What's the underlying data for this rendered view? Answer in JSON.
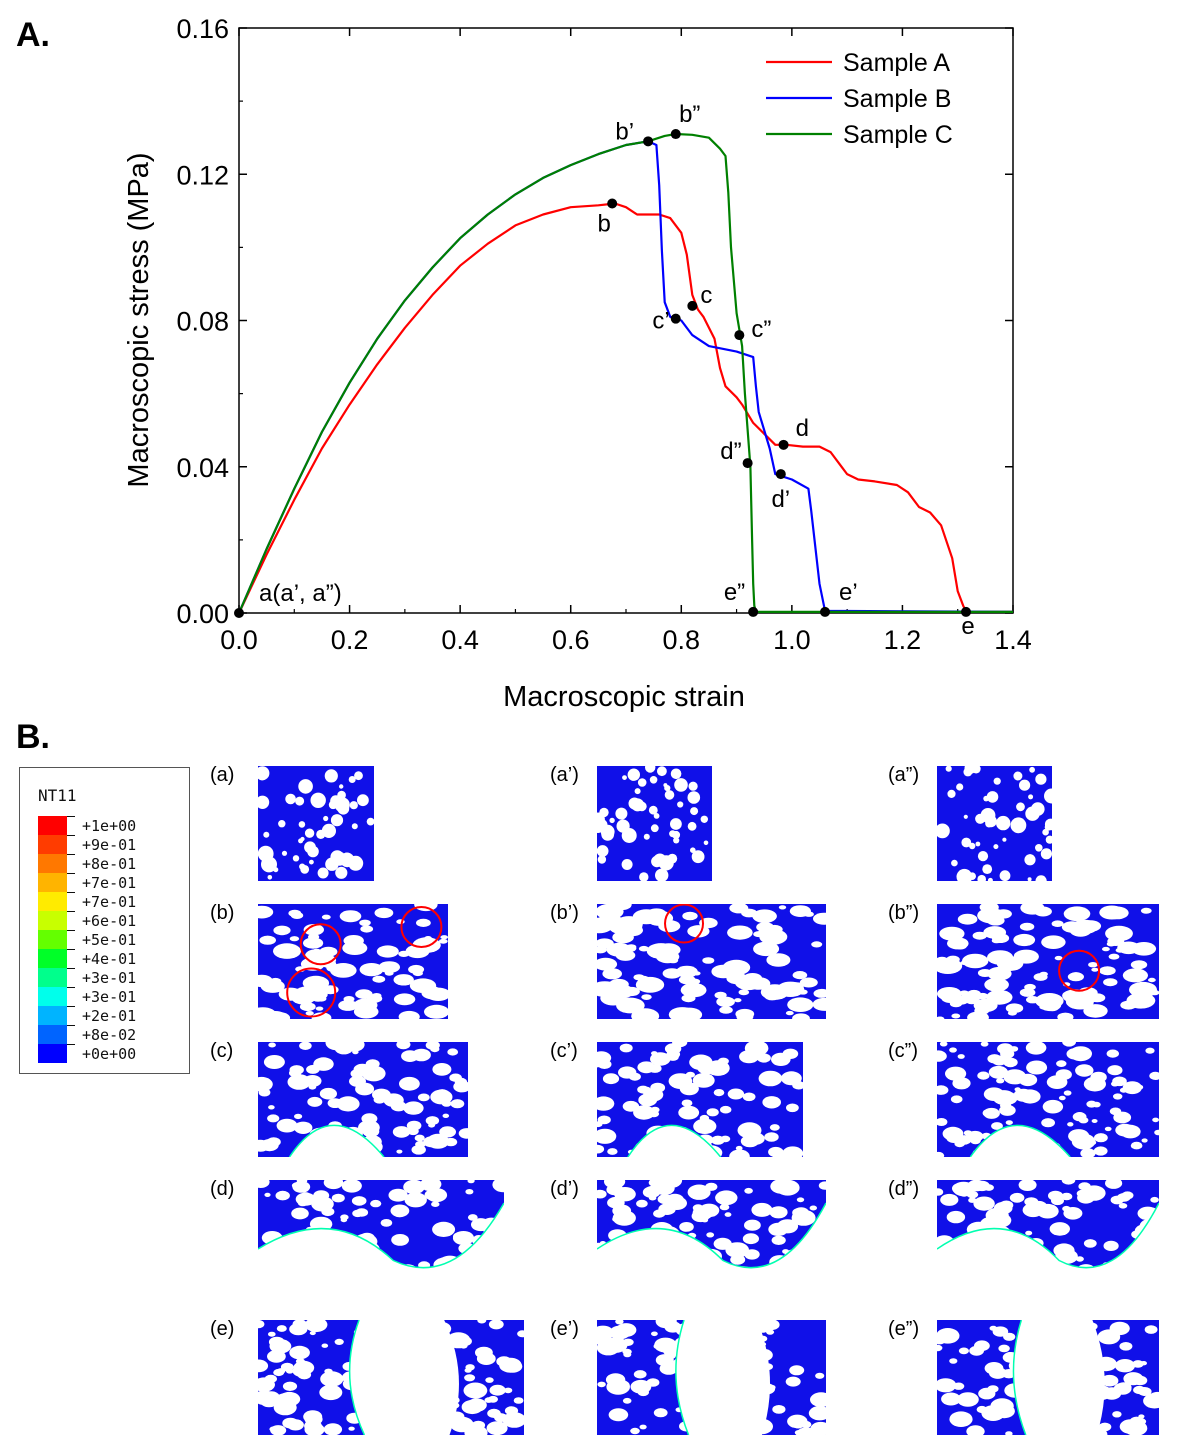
{
  "chart_data": {
    "type": "line",
    "panel_label": "A.",
    "xlabel": "Macroscopic strain",
    "ylabel": "Macroscopic stress (MPa)",
    "xlim": [
      0.0,
      1.4
    ],
    "ylim": [
      0.0,
      0.16
    ],
    "xticks": [
      "0.0",
      "0.2",
      "0.4",
      "0.6",
      "0.8",
      "1.0",
      "1.2",
      "1.4"
    ],
    "yticks": [
      "0.00",
      "0.04",
      "0.08",
      "0.12",
      "0.16"
    ],
    "legend_position": "top-right",
    "series": [
      {
        "name": "Sample A",
        "color": "#ff0000",
        "x": [
          0,
          0.05,
          0.1,
          0.15,
          0.2,
          0.25,
          0.3,
          0.35,
          0.4,
          0.45,
          0.5,
          0.55,
          0.6,
          0.65,
          0.68,
          0.7,
          0.72,
          0.74,
          0.76,
          0.78,
          0.8,
          0.81,
          0.82,
          0.83,
          0.84,
          0.86,
          0.87,
          0.88,
          0.9,
          0.91,
          0.93,
          0.95,
          0.97,
          0.99,
          1.02,
          1.05,
          1.07,
          1.09,
          1.1,
          1.12,
          1.15,
          1.19,
          1.21,
          1.23,
          1.25,
          1.27,
          1.29,
          1.3,
          1.31,
          1.315,
          1.32,
          1.4
        ],
        "y": [
          0,
          0.016,
          0.031,
          0.045,
          0.057,
          0.068,
          0.078,
          0.087,
          0.095,
          0.101,
          0.106,
          0.109,
          0.111,
          0.1115,
          0.112,
          0.111,
          0.109,
          0.109,
          0.109,
          0.108,
          0.104,
          0.098,
          0.087,
          0.083,
          0.081,
          0.075,
          0.067,
          0.062,
          0.059,
          0.057,
          0.052,
          0.049,
          0.046,
          0.046,
          0.0455,
          0.0455,
          0.044,
          0.04,
          0.038,
          0.0365,
          0.036,
          0.035,
          0.033,
          0.029,
          0.0275,
          0.024,
          0.015,
          0.006,
          0.002,
          0.0005,
          0.0003,
          0.0003
        ]
      },
      {
        "name": "Sample B",
        "color": "#0000ff",
        "x": [
          0,
          0.05,
          0.1,
          0.15,
          0.2,
          0.25,
          0.3,
          0.35,
          0.4,
          0.45,
          0.5,
          0.55,
          0.6,
          0.65,
          0.7,
          0.74,
          0.755,
          0.76,
          0.765,
          0.77,
          0.78,
          0.79,
          0.8,
          0.82,
          0.85,
          0.9,
          0.93,
          0.935,
          0.94,
          0.96,
          0.97,
          0.98,
          1.0,
          1.03,
          1.035,
          1.05,
          1.06,
          1.4
        ],
        "y": [
          0,
          0.0175,
          0.034,
          0.0495,
          0.063,
          0.075,
          0.0855,
          0.0945,
          0.1025,
          0.109,
          0.1145,
          0.119,
          0.1225,
          0.1255,
          0.128,
          0.129,
          0.128,
          0.117,
          0.099,
          0.085,
          0.081,
          0.0805,
          0.08,
          0.076,
          0.073,
          0.0715,
          0.07,
          0.062,
          0.055,
          0.045,
          0.038,
          0.0375,
          0.0365,
          0.034,
          0.028,
          0.008,
          0.0006,
          0.0003
        ]
      },
      {
        "name": "Sample C",
        "color": "#008000",
        "x": [
          0,
          0.05,
          0.1,
          0.15,
          0.2,
          0.25,
          0.3,
          0.35,
          0.4,
          0.45,
          0.5,
          0.55,
          0.6,
          0.65,
          0.7,
          0.74,
          0.77,
          0.79,
          0.82,
          0.85,
          0.87,
          0.88,
          0.885,
          0.89,
          0.9,
          0.91,
          0.915,
          0.925,
          0.928,
          0.93,
          0.932,
          0.935,
          1.4
        ],
        "y": [
          0,
          0.0175,
          0.034,
          0.0495,
          0.063,
          0.075,
          0.0855,
          0.0945,
          0.1025,
          0.109,
          0.1145,
          0.119,
          0.1225,
          0.1255,
          0.128,
          0.129,
          0.1305,
          0.131,
          0.1308,
          0.13,
          0.127,
          0.125,
          0.115,
          0.1,
          0.082,
          0.073,
          0.06,
          0.04,
          0.02,
          0.008,
          0.002,
          0.0003,
          0.0003
        ]
      }
    ],
    "annotations": [
      {
        "label": "a(a’, a”)",
        "x": 0.0,
        "y": 0.0
      },
      {
        "label": "b",
        "x": 0.675,
        "y": 0.112
      },
      {
        "label": "b’",
        "x": 0.74,
        "y": 0.129
      },
      {
        "label": "b”",
        "x": 0.79,
        "y": 0.131
      },
      {
        "label": "c",
        "x": 0.82,
        "y": 0.084
      },
      {
        "label": "c’",
        "x": 0.79,
        "y": 0.0805
      },
      {
        "label": "c”",
        "x": 0.905,
        "y": 0.076
      },
      {
        "label": "d",
        "x": 0.985,
        "y": 0.046
      },
      {
        "label": "d’",
        "x": 0.98,
        "y": 0.038
      },
      {
        "label": "d”",
        "x": 0.92,
        "y": 0.041
      },
      {
        "label": "e",
        "x": 1.315,
        "y": 0.0003
      },
      {
        "label": "e’",
        "x": 1.06,
        "y": 0.0003
      },
      {
        "label": "e”",
        "x": 0.93,
        "y": 0.0003
      }
    ]
  },
  "panel_b": {
    "label": "B.",
    "legend": {
      "title": "NT11",
      "entries": [
        {
          "label": "+1e+00",
          "color": "#ff0000"
        },
        {
          "label": "+9e-01",
          "color": "#ff3c00"
        },
        {
          "label": "+8e-01",
          "color": "#ff7800"
        },
        {
          "label": "+7e-01",
          "color": "#ffb400"
        },
        {
          "label": "+7e-01",
          "color": "#ffeb00"
        },
        {
          "label": "+6e-01",
          "color": "#c8ff00"
        },
        {
          "label": "+5e-01",
          "color": "#64ff00"
        },
        {
          "label": "+4e-01",
          "color": "#00ff28"
        },
        {
          "label": "+3e-01",
          "color": "#00ff8c"
        },
        {
          "label": "+3e-01",
          "color": "#00ffeb"
        },
        {
          "label": "+2e-01",
          "color": "#00b4ff"
        },
        {
          "label": "+8e-02",
          "color": "#0064ff"
        },
        {
          "label": "+0e+00",
          "color": "#0000ff"
        }
      ]
    },
    "tiles": [
      {
        "label": "(a)"
      },
      {
        "label": "(a’)"
      },
      {
        "label": "(a”)"
      },
      {
        "label": "(b)"
      },
      {
        "label": "(b’)"
      },
      {
        "label": "(b”)"
      },
      {
        "label": "(c)"
      },
      {
        "label": "(c’)"
      },
      {
        "label": "(c”)"
      },
      {
        "label": "(d)"
      },
      {
        "label": "(d’)"
      },
      {
        "label": "(d”)"
      },
      {
        "label": "(e)"
      },
      {
        "label": "(e’)"
      },
      {
        "label": "(e”)"
      }
    ]
  }
}
